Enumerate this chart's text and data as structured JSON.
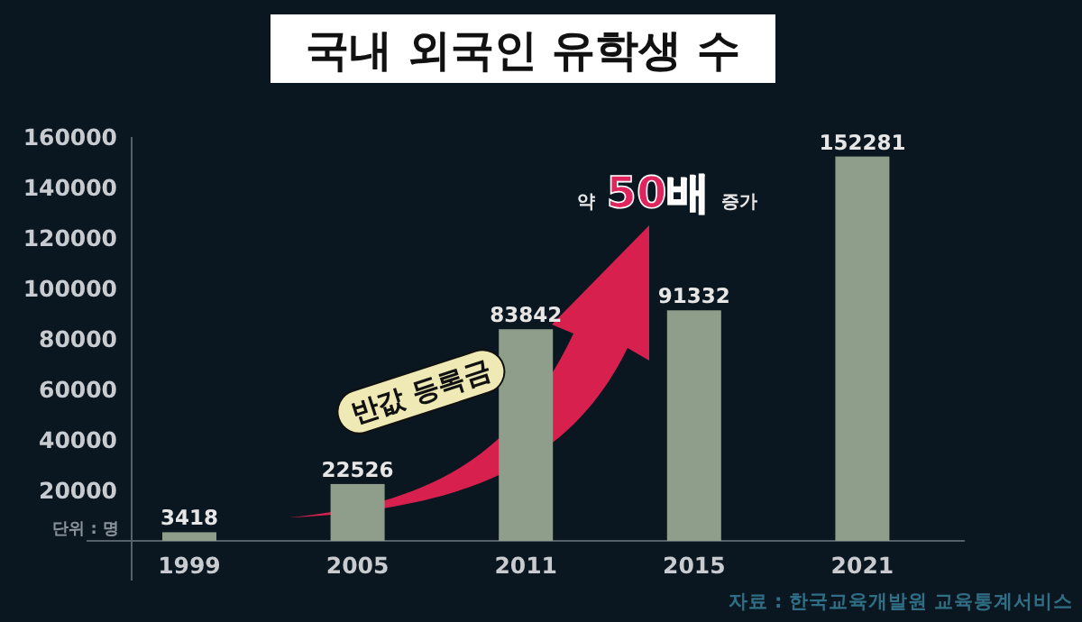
{
  "chart_data": {
    "type": "bar",
    "title": "국내 외국인 유학생 수",
    "categories": [
      "1999",
      "2005",
      "2011",
      "2015",
      "2021"
    ],
    "values": [
      3418,
      22526,
      83842,
      91332,
      152281
    ],
    "color": "#8e9e8a",
    "ylim": [
      0,
      160000
    ],
    "yticks": [
      20000,
      40000,
      60000,
      80000,
      100000,
      120000,
      140000,
      160000
    ],
    "data_labels": true,
    "annotations": [
      "단위 : 명",
      "반값 등록금",
      "약 **50배** 증가",
      "자료 : 한국교육개발원 교육통계서비스"
    ]
  }
}
